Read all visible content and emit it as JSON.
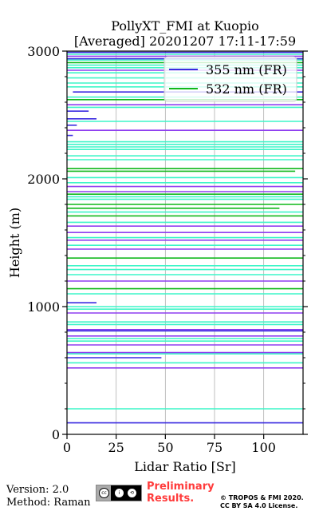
{
  "chart_data": {
    "type": "line",
    "title": "PollyXT_FMI at Kuopio",
    "subtitle": "[Averaged] 20201207 17:11-17:59",
    "xlabel": "Lidar Ratio [Sr]",
    "ylabel": "Height (m)",
    "xlim": [
      0,
      120
    ],
    "ylim": [
      0,
      3000
    ],
    "x_ticks": [
      0,
      25,
      50,
      75,
      100
    ],
    "y_ticks": [
      0,
      1000,
      2000,
      3000
    ],
    "grid": "vertical",
    "legend_position": "top-right",
    "series": [
      {
        "name": "355 nm (FR)",
        "color": "#3a2be0",
        "segments": [
          {
            "y": 90,
            "x": [
              0,
              120
            ]
          },
          {
            "y": 600,
            "x": [
              0,
              48
            ]
          },
          {
            "y": 810,
            "x": [
              0,
              120
            ]
          },
          {
            "y": 1030,
            "x": [
              0,
              15
            ]
          },
          {
            "y": 2340,
            "x": [
              0,
              3
            ]
          },
          {
            "y": 2420,
            "x": [
              0,
              5
            ]
          },
          {
            "y": 2470,
            "x": [
              0,
              15
            ]
          },
          {
            "y": 2530,
            "x": [
              0,
              11
            ]
          },
          {
            "y": 2680,
            "x": [
              3,
              120
            ]
          },
          {
            "y": 2940,
            "x": [
              0,
              120
            ]
          },
          {
            "y": 2990,
            "x": [
              0,
              120
            ]
          }
        ]
      },
      {
        "name": "532 nm (FR)",
        "color": "#0fb81a",
        "segments": [
          {
            "y": 1140,
            "x": [
              0,
              120
            ]
          },
          {
            "y": 1380,
            "x": [
              0,
              120
            ]
          },
          {
            "y": 1710,
            "x": [
              0,
              120
            ]
          },
          {
            "y": 1770,
            "x": [
              0,
              108
            ]
          },
          {
            "y": 1800,
            "x": [
              0,
              120
            ]
          },
          {
            "y": 1880,
            "x": [
              0,
              120
            ]
          },
          {
            "y": 2060,
            "x": [
              0,
              116
            ]
          },
          {
            "y": 2080,
            "x": [
              0,
              120
            ]
          },
          {
            "y": 2620,
            "x": [
              0,
              120
            ]
          },
          {
            "y": 2910,
            "x": [
              0,
              120
            ]
          }
        ]
      }
    ],
    "overlay_series": [
      {
        "color": "#8f3ef0",
        "segments": [
          {
            "y": 520,
            "x": [
              0,
              120
            ]
          },
          {
            "y": 640,
            "x": [
              0,
              120
            ]
          },
          {
            "y": 700,
            "x": [
              0,
              120
            ]
          },
          {
            "y": 770,
            "x": [
              0,
              120
            ]
          },
          {
            "y": 820,
            "x": [
              0,
              120
            ]
          },
          {
            "y": 950,
            "x": [
              0,
              120
            ]
          },
          {
            "y": 1200,
            "x": [
              0,
              120
            ]
          },
          {
            "y": 1450,
            "x": [
              0,
              120
            ]
          },
          {
            "y": 1520,
            "x": [
              0,
              120
            ]
          },
          {
            "y": 1580,
            "x": [
              0,
              120
            ]
          },
          {
            "y": 1630,
            "x": [
              0,
              120
            ]
          },
          {
            "y": 1900,
            "x": [
              0,
              120
            ]
          },
          {
            "y": 1940,
            "x": [
              0,
              120
            ]
          },
          {
            "y": 2380,
            "x": [
              0,
              120
            ]
          },
          {
            "y": 2580,
            "x": [
              0,
              120
            ]
          },
          {
            "y": 2850,
            "x": [
              0,
              120
            ]
          },
          {
            "y": 2960,
            "x": [
              0,
              120
            ]
          }
        ]
      },
      {
        "color": "#3df5c8",
        "segments": [
          {
            "y": 200,
            "x": [
              0,
              120
            ]
          },
          {
            "y": 560,
            "x": [
              0,
              120
            ]
          },
          {
            "y": 630,
            "x": [
              0,
              120
            ]
          },
          {
            "y": 730,
            "x": [
              0,
              120
            ]
          },
          {
            "y": 750,
            "x": [
              0,
              120
            ]
          },
          {
            "y": 860,
            "x": [
              0,
              120
            ]
          },
          {
            "y": 880,
            "x": [
              0,
              120
            ]
          },
          {
            "y": 980,
            "x": [
              0,
              120
            ]
          },
          {
            "y": 1000,
            "x": [
              0,
              120
            ]
          },
          {
            "y": 1100,
            "x": [
              0,
              120
            ]
          },
          {
            "y": 1250,
            "x": [
              0,
              120
            ]
          },
          {
            "y": 1290,
            "x": [
              0,
              120
            ]
          },
          {
            "y": 1320,
            "x": [
              0,
              120
            ]
          },
          {
            "y": 1480,
            "x": [
              0,
              120
            ]
          },
          {
            "y": 1540,
            "x": [
              0,
              120
            ]
          },
          {
            "y": 1660,
            "x": [
              0,
              120
            ]
          },
          {
            "y": 1740,
            "x": [
              0,
              120
            ]
          },
          {
            "y": 1840,
            "x": [
              0,
              120
            ]
          },
          {
            "y": 1860,
            "x": [
              0,
              120
            ]
          },
          {
            "y": 1970,
            "x": [
              0,
              120
            ]
          },
          {
            "y": 2010,
            "x": [
              0,
              120
            ]
          },
          {
            "y": 2150,
            "x": [
              0,
              120
            ]
          },
          {
            "y": 2180,
            "x": [
              0,
              120
            ]
          },
          {
            "y": 2230,
            "x": [
              0,
              120
            ]
          },
          {
            "y": 2250,
            "x": [
              0,
              120
            ]
          },
          {
            "y": 2270,
            "x": [
              0,
              120
            ]
          },
          {
            "y": 2290,
            "x": [
              0,
              120
            ]
          },
          {
            "y": 2450,
            "x": [
              0,
              120
            ]
          },
          {
            "y": 2560,
            "x": [
              0,
              120
            ]
          },
          {
            "y": 2640,
            "x": [
              0,
              120
            ]
          },
          {
            "y": 2720,
            "x": [
              0,
              120
            ]
          },
          {
            "y": 2750,
            "x": [
              0,
              120
            ]
          },
          {
            "y": 2790,
            "x": [
              0,
              120
            ]
          },
          {
            "y": 2830,
            "x": [
              0,
              120
            ]
          },
          {
            "y": 2870,
            "x": [
              0,
              120
            ]
          },
          {
            "y": 2890,
            "x": [
              0,
              120
            ]
          },
          {
            "y": 2930,
            "x": [
              0,
              120
            ]
          },
          {
            "y": 2975,
            "x": [
              0,
              120
            ]
          }
        ]
      }
    ]
  },
  "footer": {
    "version": "Version: 2.0",
    "method": "Method: Raman",
    "preliminary_line1": "Preliminary",
    "preliminary_line2": "Results.",
    "copyright_line1": "© TROPOS & FMI 2020.",
    "copyright_line2": "CC BY SA 4.0 License."
  },
  "colors": {
    "accent_red": "#ff3b3b"
  }
}
